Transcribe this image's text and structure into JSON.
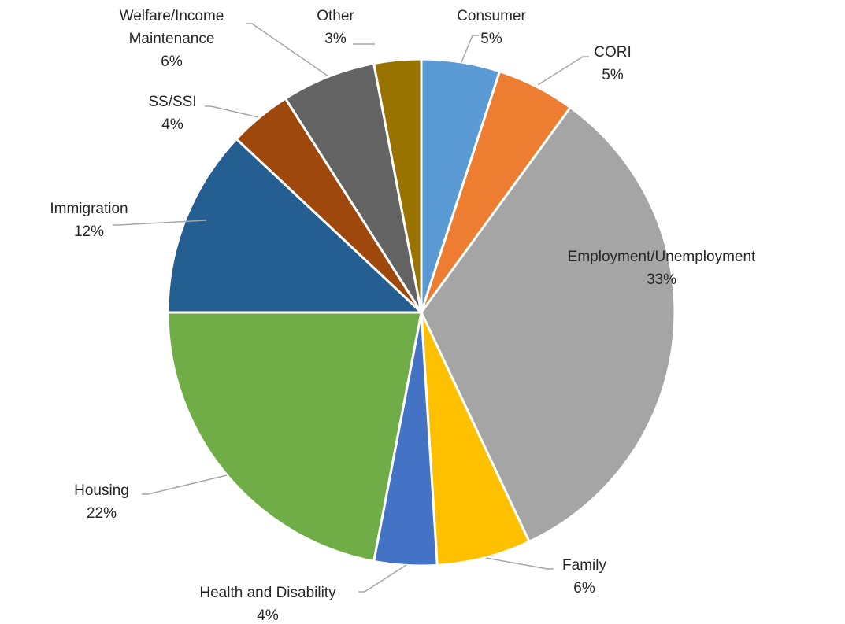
{
  "chart_data": {
    "type": "pie",
    "title": "",
    "slices": [
      {
        "name": "Consumer",
        "value": 5,
        "value_label": "5%",
        "color": "#5B9BD5"
      },
      {
        "name": "CORI",
        "value": 5,
        "value_label": "5%",
        "color": "#ED7D31"
      },
      {
        "name": "Employment/Unemployment",
        "value": 33,
        "value_label": "33%",
        "color": "#A5A5A5"
      },
      {
        "name": "Family",
        "value": 6,
        "value_label": "6%",
        "color": "#FFC000"
      },
      {
        "name": "Health and Disability",
        "value": 4,
        "value_label": "4%",
        "color": "#4472C4"
      },
      {
        "name": "Housing",
        "value": 22,
        "value_label": "22%",
        "color": "#70AD47"
      },
      {
        "name": "Immigration",
        "value": 12,
        "value_label": "12%",
        "color": "#255E91"
      },
      {
        "name": "SS/SSI",
        "value": 4,
        "value_label": "4%",
        "color": "#9E480E"
      },
      {
        "name": "Welfare/Income Maintenance",
        "name_lines": [
          "Welfare/Income",
          "Maintenance"
        ],
        "value": 6,
        "value_label": "6%",
        "color": "#636363"
      },
      {
        "name": "Other",
        "value": 3,
        "value_label": "3%",
        "color": "#997300"
      }
    ]
  }
}
